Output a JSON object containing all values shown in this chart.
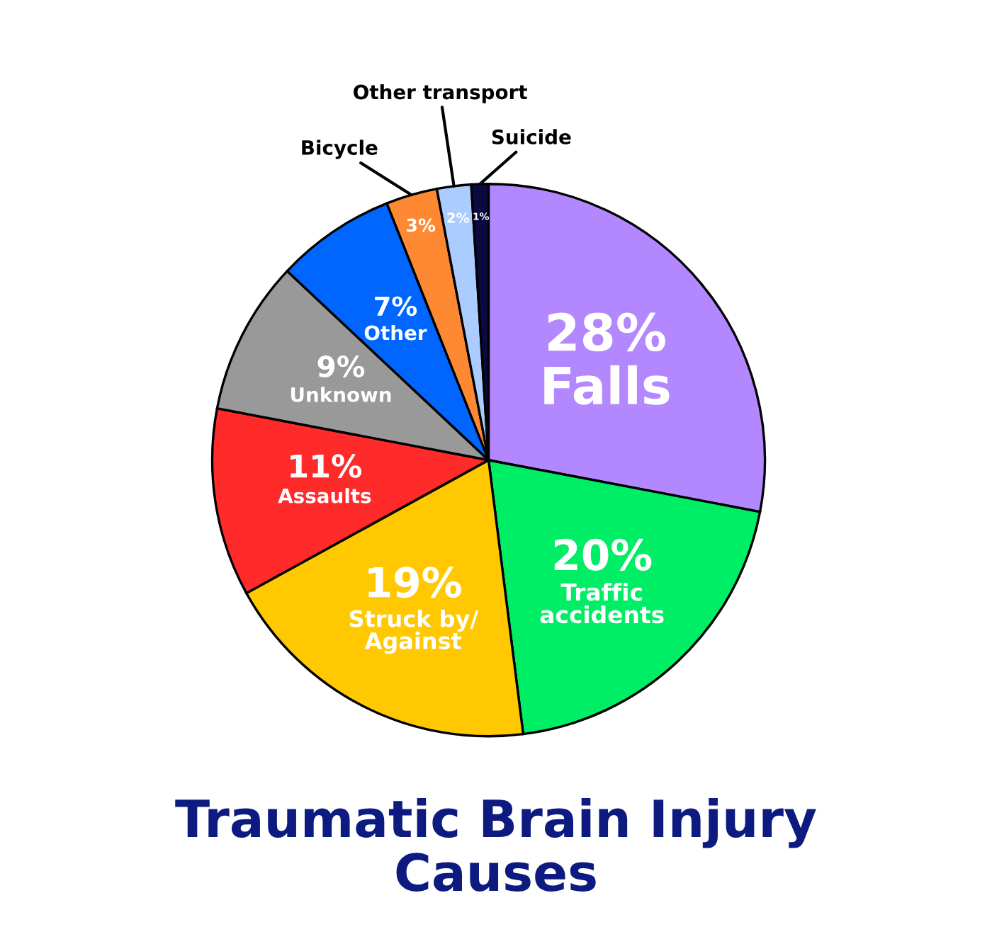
{
  "chart_data": {
    "type": "pie",
    "title": "Traumatic Brain Injury\nCauses",
    "categories": [
      "Falls",
      "Traffic\naccidents",
      "Struck by/\nAgainst",
      "Assaults",
      "Unknown",
      "Other",
      "Bicycle",
      "Other transport",
      "Suicide"
    ],
    "values": [
      28,
      20,
      19,
      11,
      9,
      7,
      3,
      2,
      1
    ],
    "value_labels": [
      "28%",
      "20%",
      "19%",
      "11%",
      "9%",
      "7%",
      "3%",
      "2%",
      "1%"
    ],
    "colors": [
      "#b388ff",
      "#00ee66",
      "#ffc800",
      "#ff2a2a",
      "#999999",
      "#0066ff",
      "#ff8833",
      "#aaccff",
      "#0a0a40"
    ]
  }
}
